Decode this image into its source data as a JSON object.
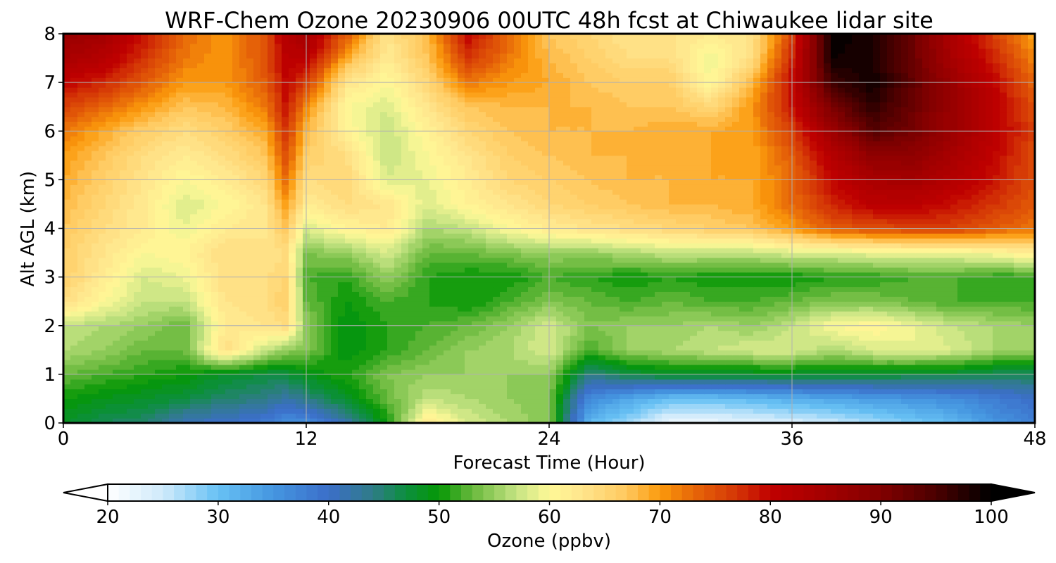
{
  "chart_data": {
    "type": "heatmap",
    "title": "WRF-Chem Ozone  20230906 00UTC 48h fcst at Chiwaukee lidar site",
    "xlabel": "Forecast Time (Hour)",
    "ylabel": "Alt AGL (km)",
    "xlim": [
      0,
      48
    ],
    "ylim": [
      0,
      8
    ],
    "xticks": [
      "0",
      "12",
      "24",
      "36",
      "48"
    ],
    "yticks": [
      "0",
      "1",
      "2",
      "3",
      "4",
      "5",
      "6",
      "7",
      "8"
    ],
    "grid": true,
    "x": [
      0,
      2,
      4,
      6,
      8,
      10,
      11,
      12,
      14,
      16,
      18,
      20,
      22,
      24,
      26,
      28,
      30,
      32,
      34,
      36,
      38,
      40,
      42,
      44,
      46,
      48
    ],
    "y": [
      0,
      0.5,
      1,
      1.5,
      2,
      2.5,
      3,
      3.5,
      4,
      4.5,
      5,
      5.5,
      6,
      6.5,
      7,
      7.5,
      8
    ],
    "z": [
      [
        48,
        46,
        45,
        41,
        40,
        38,
        36,
        36,
        42,
        50,
        62,
        58,
        56,
        54,
        31,
        27,
        22,
        22,
        23,
        24,
        25,
        27,
        29,
        31,
        35,
        38
      ],
      [
        50,
        49,
        48,
        47,
        45,
        44,
        42,
        44,
        48,
        53,
        57,
        56,
        55,
        54,
        36,
        33,
        30,
        30,
        31,
        32,
        33,
        34,
        35,
        36,
        38,
        40
      ],
      [
        53,
        52,
        51,
        50,
        48,
        47,
        47,
        49,
        51,
        54,
        55,
        55,
        55,
        55,
        44,
        47,
        48,
        48,
        48,
        48,
        48,
        48,
        47,
        47,
        46,
        46
      ],
      [
        56,
        55,
        53,
        53,
        64,
        57,
        55,
        54,
        49,
        51,
        53,
        55,
        56,
        58,
        52,
        55,
        56,
        57,
        58,
        58,
        56,
        58,
        59,
        58,
        56,
        55
      ],
      [
        57,
        56,
        55,
        53,
        62,
        63,
        64,
        55,
        49,
        51,
        52,
        53,
        55,
        58,
        54,
        55,
        55,
        56,
        55,
        57,
        60,
        61,
        59,
        57,
        56,
        55
      ],
      [
        64,
        60,
        57,
        57,
        63,
        64,
        66,
        53,
        50,
        52,
        51,
        50,
        52,
        54,
        53,
        52,
        53,
        52,
        52,
        53,
        54,
        54,
        53,
        52,
        52,
        52
      ],
      [
        66,
        62,
        58,
        59,
        64,
        64,
        65,
        52,
        51,
        55,
        51,
        50,
        50,
        52,
        51,
        50,
        51,
        50,
        50,
        50,
        51,
        51,
        52,
        52,
        51,
        51
      ],
      [
        66,
        63,
        60,
        61,
        64,
        63,
        64,
        54,
        55,
        58,
        53,
        53,
        54,
        55,
        55,
        56,
        57,
        57,
        57,
        58,
        58,
        59,
        59,
        59,
        60,
        62
      ],
      [
        67,
        64,
        62,
        59,
        62,
        63,
        67,
        58,
        61,
        62,
        56,
        57,
        60,
        62,
        63,
        64,
        65,
        66,
        67,
        70,
        74,
        75,
        76,
        76,
        74,
        72
      ],
      [
        68,
        65,
        62,
        58,
        60,
        63,
        70,
        62,
        64,
        63,
        58,
        61,
        63,
        65,
        66,
        67,
        68,
        68,
        69,
        73,
        78,
        81,
        81,
        79,
        77,
        74
      ],
      [
        69,
        66,
        63,
        60,
        62,
        65,
        73,
        64,
        65,
        58,
        59,
        62,
        65,
        66,
        67,
        68,
        68,
        69,
        69,
        73,
        80,
        84,
        85,
        82,
        79,
        75
      ],
      [
        70,
        67,
        64,
        62,
        64,
        67,
        75,
        66,
        64,
        57,
        60,
        63,
        66,
        67,
        68,
        68,
        68,
        69,
        69,
        74,
        82,
        88,
        88,
        84,
        80,
        75
      ],
      [
        72,
        69,
        66,
        64,
        66,
        69,
        77,
        68,
        61,
        57,
        61,
        65,
        67,
        68,
        68,
        68,
        69,
        69,
        70,
        76,
        86,
        94,
        91,
        86,
        81,
        76
      ],
      [
        76,
        73,
        70,
        67,
        68,
        72,
        79,
        71,
        60,
        58,
        63,
        67,
        68,
        68,
        68,
        67,
        67,
        65,
        70,
        79,
        91,
        97,
        92,
        86,
        81,
        75
      ],
      [
        80,
        78,
        74,
        70,
        70,
        74,
        80,
        76,
        63,
        60,
        65,
        72,
        70,
        69,
        67,
        66,
        66,
        60,
        68,
        80,
        96,
        99,
        93,
        86,
        80,
        73
      ],
      [
        84,
        82,
        77,
        72,
        70,
        75,
        81,
        81,
        69,
        62,
        67,
        77,
        72,
        68,
        66,
        64,
        64,
        59,
        64,
        78,
        99,
        98,
        92,
        84,
        78,
        71
      ],
      [
        87,
        85,
        79,
        73,
        70,
        75,
        82,
        85,
        74,
        63,
        68,
        80,
        73,
        67,
        65,
        63,
        63,
        62,
        63,
        76,
        100,
        98,
        92,
        83,
        76,
        69
      ]
    ],
    "colorbar": {
      "label": "Ozone  (ppbv)",
      "min": 20,
      "max": 100,
      "step": 1,
      "ticks": [
        "20",
        "30",
        "40",
        "50",
        "60",
        "70",
        "80",
        "90",
        "100"
      ],
      "extend": "both"
    },
    "colormap": [
      [
        20,
        "#ffffff"
      ],
      [
        25,
        "#cfeafb"
      ],
      [
        30,
        "#67c1f4"
      ],
      [
        35,
        "#4596e0"
      ],
      [
        40,
        "#3b6ec9"
      ],
      [
        44,
        "#2f7c87"
      ],
      [
        47,
        "#0c8f3e"
      ],
      [
        50,
        "#059705"
      ],
      [
        53,
        "#68b93c"
      ],
      [
        57,
        "#c5e383"
      ],
      [
        60,
        "#fff897"
      ],
      [
        63,
        "#ffe58c"
      ],
      [
        67,
        "#ffc85e"
      ],
      [
        70,
        "#fb9a0c"
      ],
      [
        73,
        "#e76708"
      ],
      [
        77,
        "#d43506"
      ],
      [
        80,
        "#c00000"
      ],
      [
        85,
        "#a30000"
      ],
      [
        90,
        "#820000"
      ],
      [
        95,
        "#4a0000"
      ],
      [
        100,
        "#000000"
      ]
    ]
  }
}
